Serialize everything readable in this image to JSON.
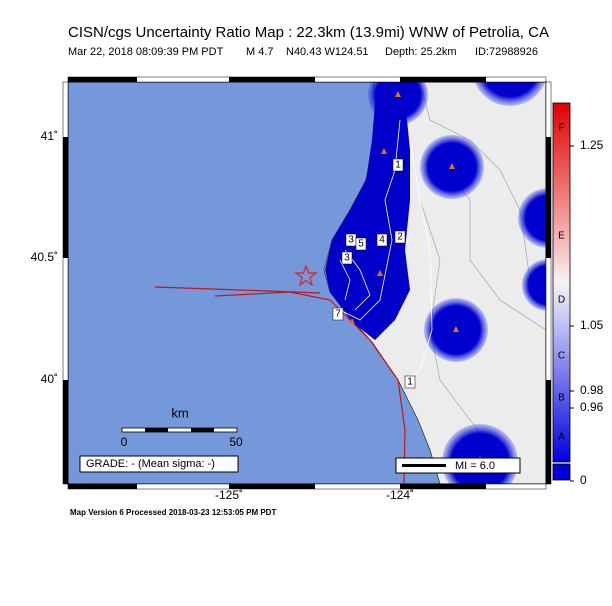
{
  "header": {
    "title": "CISN/cgs Uncertainty Ratio Map : 22.3km (13.9mi) WNW of Petrolia, CA",
    "info": [
      "Mar 22, 2018 08:09:39 PM PDT",
      "M 4.7",
      "N40.43 W124.51",
      "Depth: 25.2km",
      "ID:72988926"
    ]
  },
  "map": {
    "lat_labels": [
      "41˚",
      "40.5˚",
      "40˚"
    ],
    "lon_labels": [
      "-125˚",
      "-124˚"
    ],
    "contour_labels": [
      "1",
      "2",
      "3",
      "4",
      "5",
      "3",
      "7",
      "1"
    ],
    "scale": {
      "unit": "km",
      "labels": [
        "0",
        "50"
      ]
    },
    "grade": "GRADE: - (Mean sigma: -)",
    "mi_legend": "MI = 6.0"
  },
  "colorbar": {
    "letters": [
      "F",
      "E",
      "D",
      "C",
      "B",
      "A"
    ],
    "ticks": [
      "1.25",
      "1.05",
      "0.98",
      "0.96",
      "0"
    ]
  },
  "footer": "Map Version 6 Processed 2018-03-23 12:53:05 PM PDT"
}
